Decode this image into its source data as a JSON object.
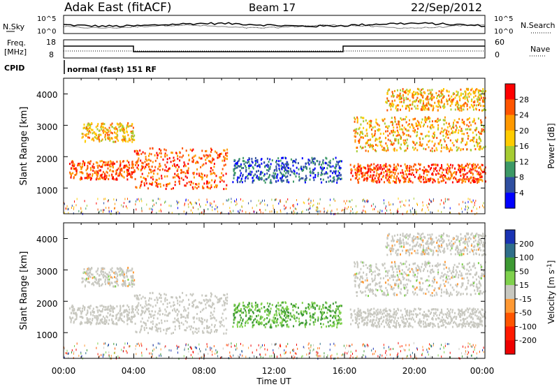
{
  "header": {
    "station": "Adak East (fitACF)",
    "beam": "Beam 17",
    "date": "22/Sep/2012"
  },
  "status_panels": {
    "noise_left": "N.Sky",
    "noise_left_ticks": [
      "10^5",
      "10^0"
    ],
    "noise_right": "N.Search",
    "noise_right_ticks": [
      "10^5",
      "10^0"
    ],
    "freq_label_1": "Freq.",
    "freq_label_2": "[MHz]",
    "freq_ticks": [
      "18",
      "8"
    ],
    "nave_label": "Nave",
    "nave_ticks": [
      "60",
      "0"
    ],
    "cpid_label": "CPID",
    "cpid_text": "normal (fast) 151 RF"
  },
  "axes": {
    "ylabel": "Slant Range [km]",
    "xlabel": "Time UT",
    "y_ticks": [
      "4000",
      "3000",
      "2000",
      "1000"
    ],
    "x_ticks": [
      "00:00",
      "04:00",
      "08:00",
      "12:00",
      "16:00",
      "20:00",
      "00:00"
    ]
  },
  "power_bar": {
    "label": "Power [dB]",
    "ticks": [
      "28",
      "24",
      "20",
      "16",
      "12",
      "8",
      "4"
    ],
    "colors": [
      "#ff0000",
      "#ff5500",
      "#ff9900",
      "#ffcc00",
      "#a6cc33",
      "#3d9966",
      "#2f4fa0",
      "#0000ff"
    ]
  },
  "velocity_bar": {
    "label": "Velocity [m s",
    "label_sup": "-1",
    "label_end": "]",
    "ticks": [
      "200",
      "100",
      "50",
      "15",
      "-15",
      "-50",
      "-100",
      "-200"
    ],
    "colors": [
      "#1a33b3",
      "#2f6e8a",
      "#3d9933",
      "#7fd14d",
      "#c8c8c0",
      "#ff9933",
      "#ff5500",
      "#ff1a00",
      "#ee0000"
    ]
  },
  "chart_data": {
    "type": "heatmap",
    "panels": [
      "Power [dB]",
      "Velocity [m s-1]"
    ],
    "x_range_hours": [
      0,
      24
    ],
    "y_range_km": [
      180,
      4500
    ],
    "bands_range_km": [
      {
        "t0": 0.3,
        "t1": 4.0,
        "r0": 1300,
        "r1": 1900
      },
      {
        "t0": 4.0,
        "t1": 9.3,
        "r0": 1000,
        "r1": 2300
      },
      {
        "t0": 1.0,
        "t1": 4.0,
        "r0": 2500,
        "r1": 3100
      },
      {
        "t0": 16.3,
        "t1": 24.0,
        "r0": 1200,
        "r1": 1800
      },
      {
        "t0": 16.5,
        "t1": 24.0,
        "r0": 2200,
        "r1": 3300
      },
      {
        "t0": 18.3,
        "t1": 24.0,
        "r0": 3500,
        "r1": 4200
      },
      {
        "t0": 9.6,
        "t1": 15.8,
        "r0": 1200,
        "r1": 2000
      }
    ]
  }
}
